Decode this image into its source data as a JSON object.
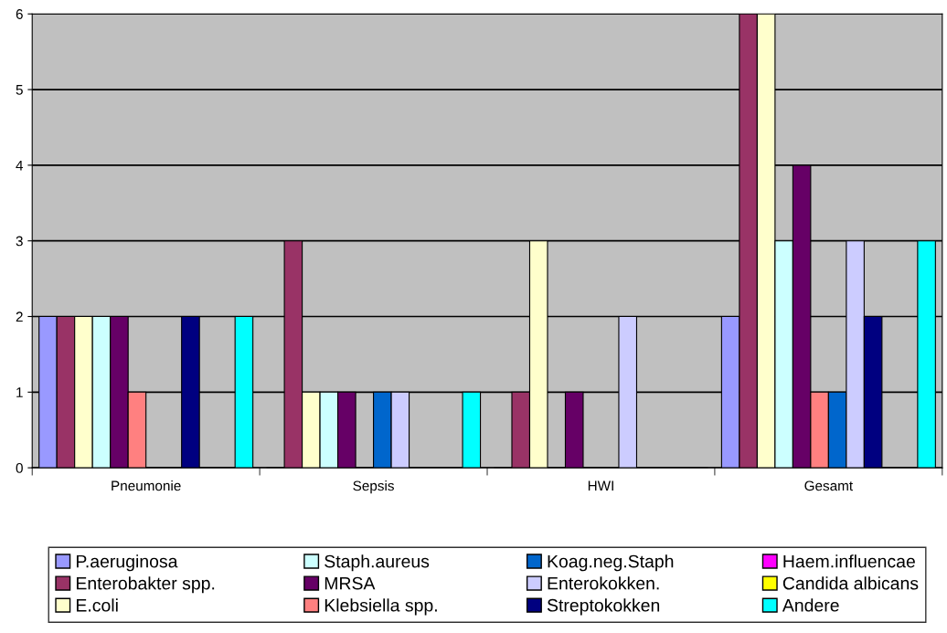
{
  "chart_data": {
    "type": "bar",
    "categories": [
      "Pneumonie",
      "Sepsis",
      "HWI",
      "Gesamt"
    ],
    "series": [
      {
        "name": "P.aeruginosa",
        "color": "#9999ff",
        "values": [
          2,
          0,
          0,
          2
        ]
      },
      {
        "name": "Enterobakter spp.",
        "color": "#993366",
        "values": [
          2,
          3,
          1,
          6
        ]
      },
      {
        "name": "E.coli",
        "color": "#ffffcc",
        "values": [
          2,
          1,
          3,
          6
        ]
      },
      {
        "name": "Staph.aureus",
        "color": "#ccffff",
        "values": [
          2,
          1,
          0,
          3
        ]
      },
      {
        "name": "MRSA",
        "color": "#660066",
        "values": [
          2,
          1,
          1,
          4
        ]
      },
      {
        "name": "Klebsiella spp.",
        "color": "#ff8080",
        "values": [
          1,
          0,
          0,
          1
        ]
      },
      {
        "name": "Koag.neg.Staph",
        "color": "#0066cc",
        "values": [
          0,
          1,
          0,
          1
        ]
      },
      {
        "name": "Enterokokken.",
        "color": "#ccccff",
        "values": [
          0,
          1,
          2,
          3
        ]
      },
      {
        "name": "Streptokokken",
        "color": "#000080",
        "values": [
          2,
          0,
          0,
          2
        ]
      },
      {
        "name": "Haem.influencae",
        "color": "#ff00ff",
        "values": [
          0,
          0,
          0,
          0
        ]
      },
      {
        "name": "Candida albicans",
        "color": "#ffff00",
        "values": [
          0,
          0,
          0,
          0
        ]
      },
      {
        "name": "Andere",
        "color": "#00ffff",
        "values": [
          2,
          1,
          0,
          3
        ]
      }
    ],
    "ylim": [
      0,
      6
    ],
    "yticks": [
      0,
      1,
      2,
      3,
      4,
      5,
      6
    ],
    "grid": "y",
    "legend": "bottom"
  }
}
